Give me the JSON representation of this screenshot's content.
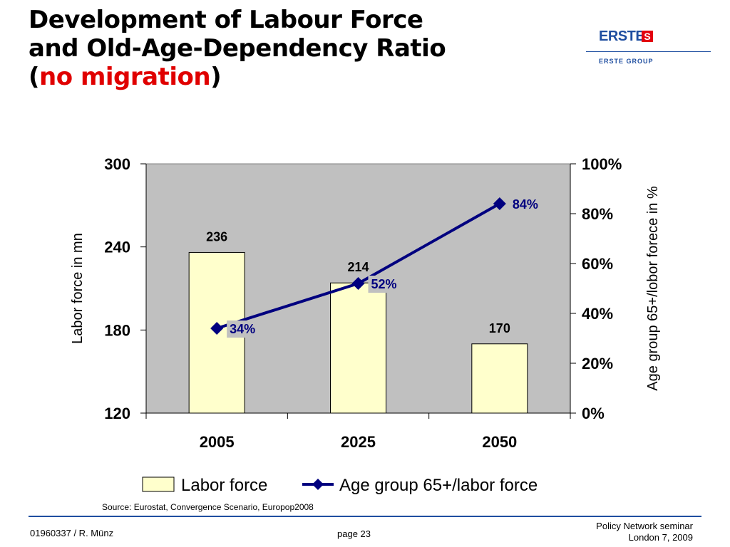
{
  "title": {
    "line1": "Development of Labour Force",
    "line2": "and Old-Age-Dependency Ratio",
    "line3_open": "(",
    "line3_highlight": "no migration",
    "line3_close": ")"
  },
  "logo": {
    "brand": "ERSTE",
    "mark": "S",
    "group": "ERSTE GROUP"
  },
  "colors": {
    "title_highlight": "#e00000",
    "plot_background": "#c0c0c0",
    "bar_fill": "#ffffcc",
    "line": "#00007f",
    "label_box": "#c0c0c0",
    "brand_blue": "#1f4ea0"
  },
  "chart_data": {
    "type": "bar",
    "categories": [
      "2005",
      "2025",
      "2050"
    ],
    "series": [
      {
        "name": "Labor force",
        "type": "bar",
        "axis": "left",
        "values": [
          236,
          214,
          170
        ],
        "labels": [
          "236",
          "214",
          "170"
        ]
      },
      {
        "name": "Age group 65+/labor force",
        "type": "line",
        "axis": "right",
        "values": [
          34,
          52,
          84
        ],
        "labels": [
          "34%",
          "52%",
          "84%"
        ]
      }
    ],
    "ylabel": "Labor force in mn",
    "ylim": [
      120,
      300
    ],
    "yticks": [
      120,
      180,
      240,
      300
    ],
    "ytick_labels": [
      "120",
      "180",
      "240",
      "300"
    ],
    "y2label": "Age group 65+/lobor forece in %",
    "y2lim": [
      0,
      100
    ],
    "y2ticks": [
      0,
      20,
      40,
      60,
      80,
      100
    ],
    "y2tick_labels": [
      "0%",
      "20%",
      "40%",
      "60%",
      "80%",
      "100%"
    ],
    "grid": false,
    "legend_position": "bottom"
  },
  "source": "Source: Eurostat, Convergence Scenario, Europop2008",
  "footer": {
    "left": "01960337 / R. Münz",
    "center": "page 23",
    "right_line1": "Policy Network seminar",
    "right_line2": "London 7, 2009"
  }
}
